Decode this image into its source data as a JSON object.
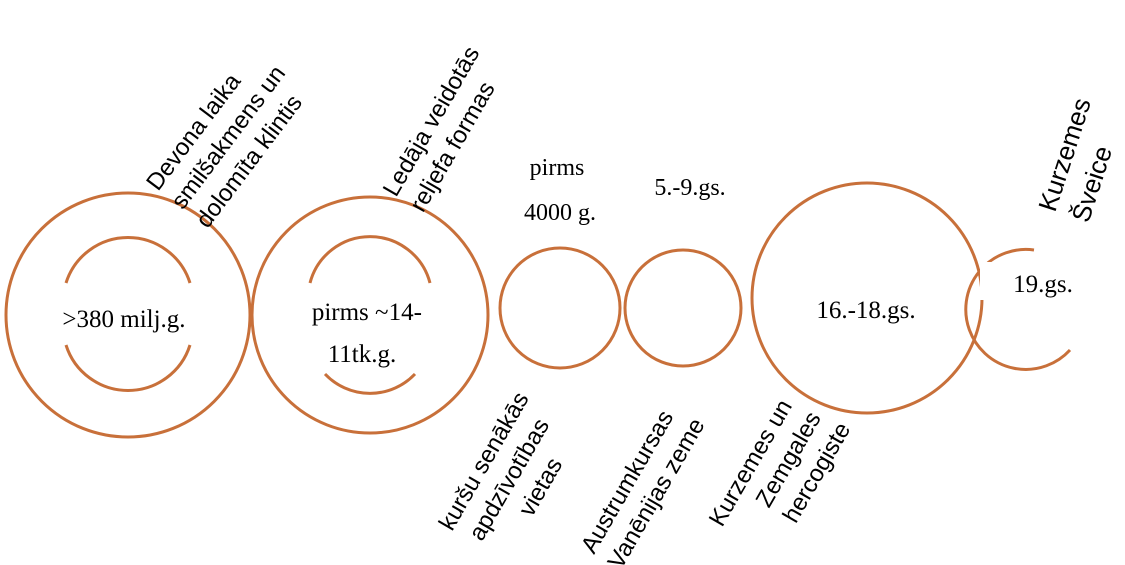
{
  "diagram": {
    "accent_color": "#c8703a",
    "items": [
      {
        "date_lines": [
          ">380 milj.g."
        ],
        "caption_lines": [
          "Devona laika",
          "smilšakmens un",
          "dolomīta klintis"
        ]
      },
      {
        "date_lines": [
          "pirms ~14-",
          "11tk.g."
        ],
        "caption_lines": [
          "Ledāja veidotās",
          "reljefa formas"
        ]
      },
      {
        "date_lines": [
          "pirms",
          "4000 g."
        ],
        "caption_lines": [
          "kuršu senākās",
          "apdzīvotības",
          "vietas"
        ]
      },
      {
        "date_lines": [
          "5.-9.gs."
        ],
        "caption_lines": [
          "Austrumkursas",
          "Vanēnijas zeme"
        ]
      },
      {
        "date_lines": [
          "16.-18.gs."
        ],
        "caption_lines": [
          "Kurzemes un",
          "Zemgales",
          "hercogiste"
        ]
      },
      {
        "date_lines": [
          "19.gs."
        ],
        "caption_lines": [
          "Kurzemes",
          "Šveice"
        ]
      }
    ]
  }
}
